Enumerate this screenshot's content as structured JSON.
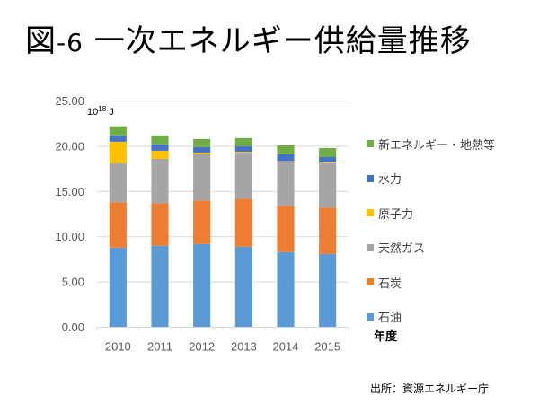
{
  "page": {
    "title_prefix": "図",
    "title_number": "-6",
    "title_text": " 一次エネルギー供給量推移",
    "source": "出所：資源エネルギー庁"
  },
  "chart_data": {
    "type": "bar",
    "stacked": true,
    "title": "図-6 一次エネルギー供給量推移",
    "unit_label_base": "10",
    "unit_label_exp": "18",
    "unit_label_suffix": " J",
    "xlabel": "年度",
    "ylabel": "10^18 J",
    "ylim": [
      0,
      25
    ],
    "yticks": [
      "0.00",
      "5.00",
      "10.00",
      "15.00",
      "20.00",
      "25.00"
    ],
    "ytick_values": [
      0,
      5,
      10,
      15,
      20,
      25
    ],
    "grid": true,
    "legend_position": "right",
    "categories": [
      "2010",
      "2011",
      "2012",
      "2013",
      "2014",
      "2015"
    ],
    "series": [
      {
        "name": "石油",
        "color": "#5B9BD5",
        "values": [
          8.8,
          9.0,
          9.2,
          8.9,
          8.3,
          8.1
        ]
      },
      {
        "name": "石炭",
        "color": "#ED7D31",
        "values": [
          5.0,
          4.7,
          4.8,
          5.3,
          5.1,
          5.1
        ]
      },
      {
        "name": "天然ガス",
        "color": "#A5A5A5",
        "values": [
          4.3,
          4.9,
          5.1,
          5.1,
          5.0,
          4.9
        ]
      },
      {
        "name": "原子力",
        "color": "#FFC000",
        "values": [
          2.4,
          0.9,
          0.2,
          0.1,
          0.0,
          0.1
        ]
      },
      {
        "name": "水力",
        "color": "#4472C4",
        "values": [
          0.7,
          0.7,
          0.6,
          0.6,
          0.7,
          0.6
        ]
      },
      {
        "name": "新エネルギー・地熱等",
        "color": "#70AD47",
        "values": [
          1.0,
          1.0,
          0.9,
          0.9,
          1.0,
          1.0
        ]
      }
    ],
    "legend_order": [
      "新エネルギー・地熱等",
      "水力",
      "原子力",
      "天然ガス",
      "石炭",
      "石油"
    ]
  }
}
